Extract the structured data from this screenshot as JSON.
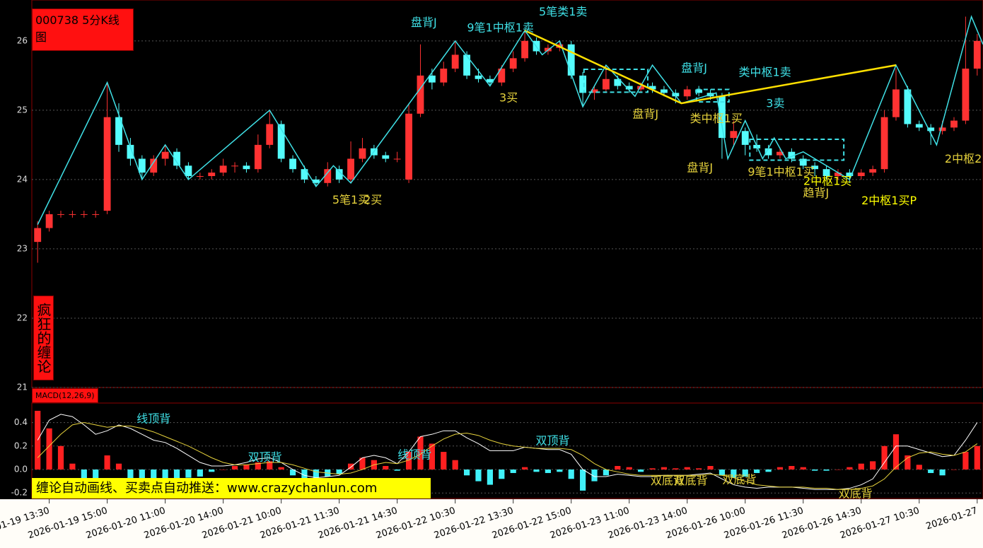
{
  "chart_data": [
    {
      "type": "candlestick",
      "title": "000738 5分K线图",
      "side_label": "疯狂的缠论",
      "categories": [
        null,
        "2026-01-19 13:30",
        null,
        null,
        null,
        null,
        "2026-01-19 15:00",
        null,
        null,
        null,
        null,
        "2026-01-20 11:00",
        null,
        null,
        null,
        null,
        "2026-01-20 14:00",
        null,
        null,
        null,
        null,
        "2026-01-21 10:00",
        null,
        null,
        null,
        null,
        "2026-01-21 11:30",
        null,
        null,
        null,
        null,
        "2026-01-21 14:30",
        null,
        null,
        null,
        null,
        "2026-01-22 10:30",
        null,
        null,
        null,
        null,
        "2026-01-22 13:30",
        null,
        null,
        null,
        null,
        "2026-01-22 15:00",
        null,
        null,
        null,
        null,
        "2026-01-23 11:00",
        null,
        null,
        null,
        null,
        "2026-01-23 14:00",
        null,
        null,
        null,
        null,
        "2026-01-26 10:00",
        null,
        null,
        null,
        null,
        "2026-01-26 11:30",
        null,
        null,
        null,
        null,
        "2026-01-26 14:30",
        null,
        null,
        null,
        null,
        "2026-01-27 10:30",
        null,
        null,
        null,
        null,
        "2026-01-27"
      ],
      "ohlc": [
        [
          23.1,
          23.4,
          22.8,
          23.3
        ],
        [
          23.3,
          23.55,
          23.25,
          23.5
        ],
        [
          23.5,
          23.55,
          23.45,
          23.5
        ],
        [
          23.5,
          23.55,
          23.45,
          23.5
        ],
        [
          23.5,
          23.55,
          23.45,
          23.5
        ],
        [
          23.5,
          23.55,
          23.45,
          23.5
        ],
        [
          23.55,
          25.4,
          23.5,
          24.9
        ],
        [
          24.9,
          25.1,
          24.4,
          24.5
        ],
        [
          24.5,
          24.6,
          24.2,
          24.3
        ],
        [
          24.3,
          24.35,
          24.0,
          24.1
        ],
        [
          24.1,
          24.35,
          24.05,
          24.3
        ],
        [
          24.3,
          24.5,
          24.2,
          24.4
        ],
        [
          24.4,
          24.45,
          24.15,
          24.2
        ],
        [
          24.2,
          24.25,
          24.0,
          24.05
        ],
        [
          24.05,
          24.1,
          24.0,
          24.05
        ],
        [
          24.05,
          24.15,
          24.0,
          24.1
        ],
        [
          24.1,
          24.3,
          24.05,
          24.2
        ],
        [
          24.2,
          24.25,
          24.1,
          24.2
        ],
        [
          24.2,
          24.25,
          24.1,
          24.15
        ],
        [
          24.15,
          24.65,
          24.1,
          24.5
        ],
        [
          24.5,
          25.0,
          24.45,
          24.8
        ],
        [
          24.8,
          24.85,
          24.25,
          24.3
        ],
        [
          24.3,
          24.35,
          24.1,
          24.15
        ],
        [
          24.15,
          24.2,
          23.95,
          24.0
        ],
        [
          24.0,
          24.05,
          23.9,
          23.95
        ],
        [
          23.95,
          24.25,
          23.9,
          24.15
        ],
        [
          24.15,
          24.2,
          23.95,
          24.0
        ],
        [
          24.0,
          24.55,
          23.95,
          24.3
        ],
        [
          24.3,
          24.6,
          24.25,
          24.45
        ],
        [
          24.45,
          24.5,
          24.3,
          24.35
        ],
        [
          24.35,
          24.4,
          24.25,
          24.3
        ],
        [
          24.3,
          24.4,
          24.25,
          24.3
        ],
        [
          24.0,
          25.1,
          23.95,
          24.95
        ],
        [
          24.95,
          25.95,
          24.9,
          25.5
        ],
        [
          25.5,
          25.6,
          25.3,
          25.4
        ],
        [
          25.4,
          25.7,
          25.35,
          25.6
        ],
        [
          25.6,
          26.0,
          25.55,
          25.8
        ],
        [
          25.8,
          25.85,
          25.45,
          25.5
        ],
        [
          25.5,
          25.6,
          25.4,
          25.45
        ],
        [
          25.45,
          25.5,
          25.35,
          25.4
        ],
        [
          25.4,
          25.65,
          25.35,
          25.6
        ],
        [
          25.6,
          25.85,
          25.55,
          25.75
        ],
        [
          25.75,
          26.15,
          25.7,
          26.0
        ],
        [
          26.0,
          26.05,
          25.8,
          25.85
        ],
        [
          25.85,
          25.95,
          25.8,
          25.9
        ],
        [
          25.9,
          26.0,
          25.85,
          25.95
        ],
        [
          25.95,
          26.0,
          25.45,
          25.5
        ],
        [
          25.5,
          25.55,
          25.05,
          25.25
        ],
        [
          25.25,
          25.35,
          25.15,
          25.3
        ],
        [
          25.3,
          25.65,
          25.25,
          25.45
        ],
        [
          25.45,
          25.5,
          25.3,
          25.35
        ],
        [
          25.35,
          25.4,
          25.25,
          25.3
        ],
        [
          25.3,
          25.4,
          25.25,
          25.35
        ],
        [
          25.35,
          25.4,
          25.25,
          25.3
        ],
        [
          25.3,
          25.35,
          25.2,
          25.25
        ],
        [
          25.25,
          25.3,
          25.1,
          25.2
        ],
        [
          25.2,
          25.35,
          25.15,
          25.3
        ],
        [
          25.3,
          25.35,
          25.2,
          25.25
        ],
        [
          25.25,
          25.3,
          25.15,
          25.2
        ],
        [
          25.2,
          25.25,
          24.3,
          24.6
        ],
        [
          24.6,
          24.85,
          24.5,
          24.7
        ],
        [
          24.7,
          24.75,
          24.35,
          24.5
        ],
        [
          24.5,
          24.65,
          24.4,
          24.45
        ],
        [
          24.45,
          24.5,
          24.3,
          24.35
        ],
        [
          24.35,
          24.45,
          24.3,
          24.4
        ],
        [
          24.4,
          24.45,
          24.25,
          24.3
        ],
        [
          24.3,
          24.35,
          24.15,
          24.2
        ],
        [
          24.2,
          24.25,
          24.05,
          24.15
        ],
        [
          24.15,
          24.2,
          24.0,
          24.05
        ],
        [
          24.05,
          24.15,
          24.0,
          24.1
        ],
        [
          24.1,
          24.15,
          23.95,
          24.05
        ],
        [
          24.05,
          24.15,
          24.0,
          24.1
        ],
        [
          24.1,
          24.2,
          24.05,
          24.15
        ],
        [
          24.15,
          25.0,
          24.1,
          24.9
        ],
        [
          24.9,
          25.6,
          24.85,
          25.3
        ],
        [
          25.3,
          25.35,
          24.75,
          24.8
        ],
        [
          24.8,
          24.85,
          24.7,
          24.75
        ],
        [
          24.75,
          24.8,
          24.5,
          24.7
        ],
        [
          24.7,
          24.85,
          24.65,
          24.75
        ],
        [
          24.75,
          24.9,
          24.7,
          24.85
        ],
        [
          24.85,
          26.35,
          24.8,
          25.6
        ],
        [
          25.6,
          26.1,
          25.5,
          26.0
        ]
      ],
      "up_color": "#ff3232",
      "down_color": "#54fcfc",
      "ylim": [
        21,
        26.59
      ],
      "yticks": [
        21,
        22,
        23,
        24,
        25,
        26
      ],
      "bi": {
        "color": "#3fe0e6",
        "x": [
          0,
          6,
          9,
          11,
          13,
          20,
          24,
          25.5,
          27,
          36,
          39,
          42,
          43.5,
          45,
          47,
          49,
          51.5,
          53,
          55.5,
          58.5,
          59.5,
          61,
          62.5,
          63.5,
          64.5,
          66,
          70,
          74,
          77.5,
          80.5,
          81.5
        ],
        "y": [
          23.35,
          25.4,
          24.0,
          24.5,
          24.0,
          25.0,
          23.9,
          24.2,
          23.95,
          26.0,
          25.35,
          26.15,
          25.8,
          26.0,
          25.05,
          25.65,
          25.2,
          25.65,
          25.1,
          25.25,
          24.3,
          24.85,
          24.3,
          24.6,
          24.3,
          24.4,
          24.0,
          25.65,
          24.5,
          26.35,
          25.95
        ]
      },
      "segments": {
        "color": "#ffe000",
        "x": [
          42,
          55.5,
          74
        ],
        "y": [
          26.15,
          25.1,
          25.65
        ]
      },
      "boxes": [
        [
          47.1,
          52.6,
          25.26,
          25.59
        ],
        [
          56.8,
          59.6,
          25.12,
          25.3
        ],
        [
          61.4,
          69.5,
          24.28,
          24.58
        ]
      ],
      "annotations": [
        {
          "text": "盘背J",
          "x": 33.3,
          "y": 26.26,
          "color": "#3fe0e6"
        },
        {
          "text": "9笔1中枢1卖",
          "x": 39.9,
          "y": 26.18,
          "color": "#3fe0e6"
        },
        {
          "text": "5笔类1卖",
          "x": 45.3,
          "y": 26.41,
          "color": "#3fe0e6"
        },
        {
          "text": "3买",
          "x": 40.6,
          "y": 25.17,
          "color": "#e6d23c"
        },
        {
          "text": "5笔1买",
          "x": 27,
          "y": 23.7,
          "color": "#e6d23c"
        },
        {
          "text": "2买",
          "x": 28.9,
          "y": 23.7,
          "color": "#e6d23c"
        },
        {
          "text": "盘背J",
          "x": 56.6,
          "y": 25.6,
          "color": "#3fe0e6"
        },
        {
          "text": "类中枢1卖",
          "x": 62.7,
          "y": 25.54,
          "color": "#3fe0e6"
        },
        {
          "text": "盘背J",
          "x": 52.4,
          "y": 24.94,
          "color": "#e6d23c"
        },
        {
          "text": "类中枢1买",
          "x": 58.5,
          "y": 24.87,
          "color": "#e6d23c"
        },
        {
          "text": "3卖",
          "x": 63.6,
          "y": 25.09,
          "color": "#3fe0e6"
        },
        {
          "text": "盘背J",
          "x": 57.1,
          "y": 24.16,
          "color": "#e6d23c"
        },
        {
          "text": "9笔1中枢1买",
          "x": 64.1,
          "y": 24.1,
          "color": "#e6d23c"
        },
        {
          "text": "2中枢1买",
          "x": 68.1,
          "y": 23.97,
          "color": "#ffff00"
        },
        {
          "text": "趋背J",
          "x": 67.1,
          "y": 23.8,
          "color": "#e6d23c"
        },
        {
          "text": "2中枢1买P",
          "x": 73.4,
          "y": 23.69,
          "color": "#ffff00"
        },
        {
          "text": "2中枢2",
          "x": 79.8,
          "y": 24.29,
          "color": "#e6d23c"
        }
      ]
    },
    {
      "type": "macd",
      "label": "MACD(12,26,9)",
      "values": [
        0.5,
        0.35,
        0.2,
        0.05,
        -0.08,
        -0.1,
        0.12,
        0.05,
        -0.1,
        -0.08,
        -0.1,
        -0.09,
        -0.08,
        -0.07,
        -0.06,
        -0.02,
        0.0,
        0.03,
        0.04,
        0.06,
        0.07,
        0.02,
        -0.05,
        -0.08,
        -0.09,
        -0.06,
        -0.04,
        0.05,
        0.1,
        0.08,
        0.03,
        -0.01,
        0.15,
        0.28,
        0.22,
        0.15,
        0.08,
        -0.05,
        -0.1,
        -0.13,
        -0.08,
        -0.03,
        0.02,
        -0.02,
        -0.03,
        -0.02,
        -0.08,
        -0.18,
        -0.1,
        -0.05,
        0.03,
        0.02,
        -0.02,
        0.01,
        0.02,
        0.01,
        0.02,
        0.01,
        0.03,
        -0.05,
        -0.07,
        -0.06,
        -0.03,
        -0.02,
        0.02,
        0.03,
        0.02,
        -0.01,
        -0.01,
        0.0,
        0.02,
        0.05,
        0.07,
        0.2,
        0.3,
        0.12,
        0.04,
        -0.03,
        -0.05,
        0.0,
        0.15,
        0.2
      ],
      "dif": {
        "color": "#ffffff",
        "values": [
          0.25,
          0.42,
          0.47,
          0.45,
          0.38,
          0.3,
          0.33,
          0.38,
          0.35,
          0.3,
          0.25,
          0.23,
          0.18,
          0.12,
          0.06,
          0.03,
          0.03,
          0.04,
          0.06,
          0.09,
          0.1,
          0.06,
          0.0,
          -0.05,
          -0.07,
          -0.06,
          -0.05,
          0.02,
          0.1,
          0.12,
          0.1,
          0.05,
          0.15,
          0.28,
          0.3,
          0.33,
          0.33,
          0.27,
          0.22,
          0.16,
          0.16,
          0.16,
          0.19,
          0.18,
          0.17,
          0.17,
          0.13,
          0.0,
          -0.06,
          -0.06,
          -0.04,
          -0.05,
          -0.06,
          -0.06,
          -0.05,
          -0.05,
          -0.05,
          -0.04,
          -0.03,
          -0.08,
          -0.13,
          -0.15,
          -0.16,
          -0.15,
          -0.15,
          -0.15,
          -0.16,
          -0.17,
          -0.17,
          -0.17,
          -0.16,
          -0.13,
          -0.08,
          0.06,
          0.2,
          0.2,
          0.17,
          0.14,
          0.11,
          0.12,
          0.25,
          0.4
        ]
      },
      "dea": {
        "color": "#e6d23c",
        "values": [
          0.1,
          0.2,
          0.3,
          0.38,
          0.4,
          0.38,
          0.36,
          0.37,
          0.37,
          0.35,
          0.32,
          0.28,
          0.24,
          0.2,
          0.15,
          0.1,
          0.06,
          0.04,
          0.04,
          0.05,
          0.06,
          0.06,
          0.04,
          0.01,
          -0.02,
          -0.03,
          -0.04,
          -0.03,
          0.0,
          0.04,
          0.06,
          0.05,
          0.08,
          0.13,
          0.2,
          0.26,
          0.3,
          0.31,
          0.29,
          0.25,
          0.22,
          0.2,
          0.19,
          0.18,
          0.18,
          0.18,
          0.17,
          0.12,
          0.05,
          0.0,
          -0.02,
          -0.04,
          -0.05,
          -0.05,
          -0.05,
          -0.05,
          -0.05,
          -0.05,
          -0.04,
          -0.05,
          -0.07,
          -0.1,
          -0.13,
          -0.14,
          -0.15,
          -0.15,
          -0.15,
          -0.16,
          -0.16,
          -0.17,
          -0.17,
          -0.16,
          -0.14,
          -0.08,
          0.02,
          0.1,
          0.14,
          0.15,
          0.13,
          0.12,
          0.15,
          0.22
        ]
      },
      "ylim": [
        -0.247,
        0.566
      ],
      "yticks": [
        -0.2,
        {
          "value": 0,
          "label": "0.0"
        },
        0.2,
        0.4
      ],
      "annotations": [
        {
          "text": "线顶背",
          "x": 10.0,
          "y": 0.426,
          "color": "#3fe0e6"
        },
        {
          "text": "双顶背",
          "x": 19.6,
          "y": 0.1,
          "color": "#3fe0e6"
        },
        {
          "text": "线顶背",
          "x": 32.5,
          "y": 0.12,
          "color": "#3fe0e6"
        },
        {
          "text": "双顶背",
          "x": 44.4,
          "y": 0.24,
          "color": "#3fe0e6"
        },
        {
          "text": "双底背",
          "x": 54.3,
          "y": -0.1,
          "color": "#e6d23c"
        },
        {
          "text": "双底背",
          "x": 56.3,
          "y": -0.1,
          "color": "#e6d23c"
        },
        {
          "text": "双底背",
          "x": 60.5,
          "y": -0.09,
          "color": "#e6d23c"
        },
        {
          "text": "双底背",
          "x": 70.5,
          "y": -0.21,
          "color": "#e6d23c"
        }
      ]
    }
  ],
  "banner": "缠论自动画线、买卖点自动推送：www.crazychanlun.com"
}
